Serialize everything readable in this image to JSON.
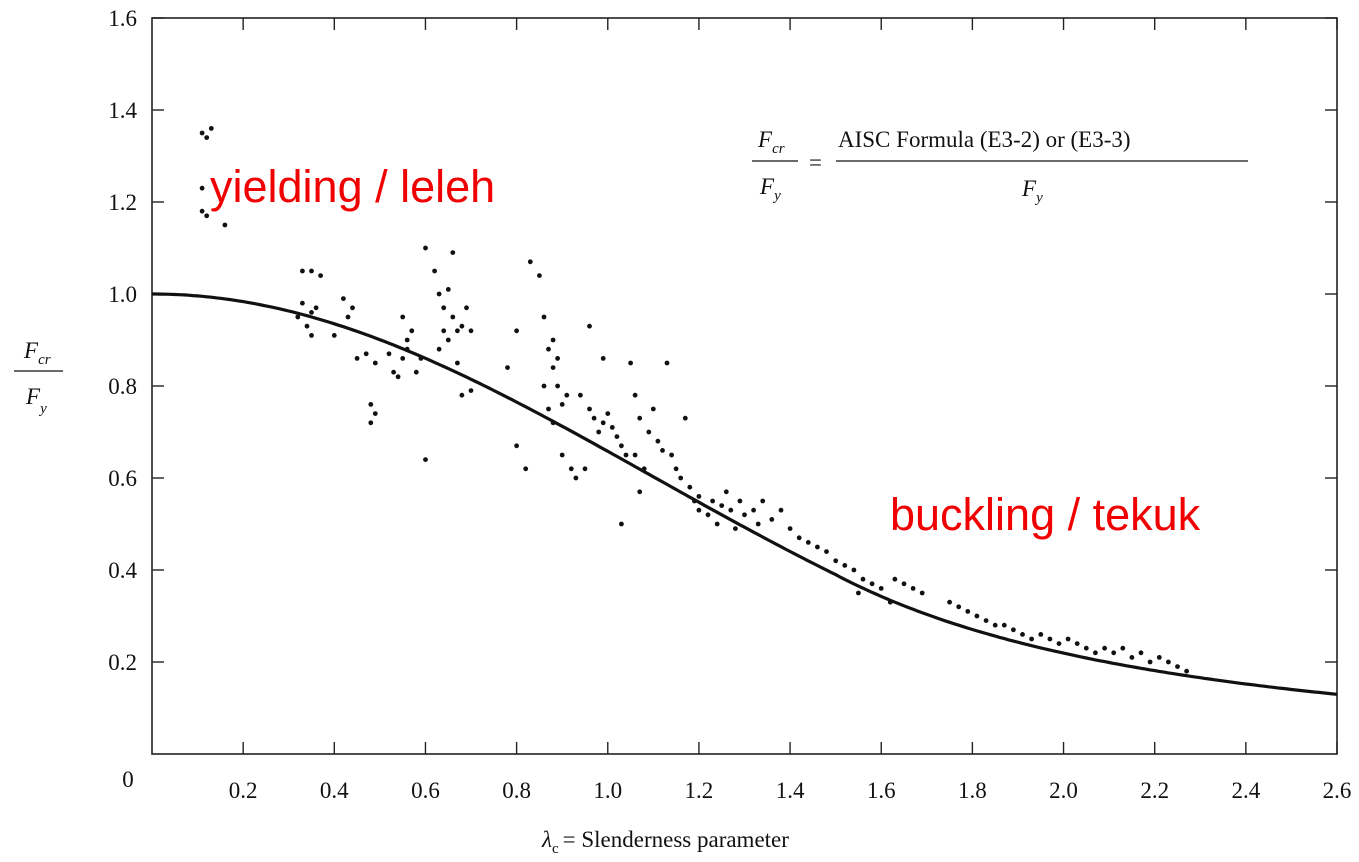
{
  "chart_data": {
    "type": "scatter",
    "xlabel_symbol": "λ",
    "xlabel_subscript": "c",
    "xlabel_text": "= Slenderness parameter",
    "ylabel_top": "F",
    "ylabel_top_sub": "cr",
    "ylabel_bottom": "F",
    "ylabel_bottom_sub": "y",
    "xlim": [
      0,
      2.6
    ],
    "ylim": [
      0,
      1.6
    ],
    "origin_label": "0",
    "x_ticks": [
      "0.2",
      "0.4",
      "0.6",
      "0.8",
      "1.0",
      "1.2",
      "1.4",
      "1.6",
      "1.8",
      "2.0",
      "2.2",
      "2.4",
      "2.6"
    ],
    "y_ticks": [
      "0.2",
      "0.4",
      "0.6",
      "0.8",
      "1.0",
      "1.2",
      "1.4",
      "1.6"
    ],
    "formula": {
      "lhs_num": "F",
      "lhs_num_sub": "cr",
      "lhs_den": "F",
      "lhs_den_sub": "y",
      "equals": "=",
      "rhs_num": "AISC Formula (E3-2) or (E3-3)",
      "rhs_den": "F",
      "rhs_den_sub": "y"
    },
    "annotations": [
      "yielding / leleh",
      "buckling / tekuk"
    ],
    "annotation_color": "#f00000",
    "curve": "AISC column strength curve: 0.658^(λc²) for λc ≤ 1.5, 0.877/λc² for λc > 1.5",
    "series": [
      {
        "points": [
          [
            0.11,
            1.35
          ],
          [
            0.12,
            1.34
          ],
          [
            0.13,
            1.36
          ],
          [
            0.11,
            1.18
          ],
          [
            0.12,
            1.17
          ],
          [
            0.16,
            1.15
          ],
          [
            0.11,
            1.23
          ],
          [
            0.33,
            1.05
          ],
          [
            0.35,
            1.05
          ],
          [
            0.37,
            1.04
          ],
          [
            0.33,
            0.98
          ],
          [
            0.35,
            0.96
          ],
          [
            0.34,
            0.93
          ],
          [
            0.35,
            0.91
          ],
          [
            0.36,
            0.97
          ],
          [
            0.32,
            0.95
          ],
          [
            0.42,
            0.99
          ],
          [
            0.44,
            0.97
          ],
          [
            0.43,
            0.95
          ],
          [
            0.4,
            0.91
          ],
          [
            0.45,
            0.86
          ],
          [
            0.47,
            0.87
          ],
          [
            0.49,
            0.85
          ],
          [
            0.48,
            0.76
          ],
          [
            0.49,
            0.74
          ],
          [
            0.48,
            0.72
          ],
          [
            0.52,
            0.87
          ],
          [
            0.53,
            0.83
          ],
          [
            0.54,
            0.82
          ],
          [
            0.55,
            0.86
          ],
          [
            0.56,
            0.88
          ],
          [
            0.57,
            0.92
          ],
          [
            0.55,
            0.95
          ],
          [
            0.56,
            0.9
          ],
          [
            0.58,
            0.83
          ],
          [
            0.59,
            0.86
          ],
          [
            0.6,
            0.64
          ],
          [
            0.62,
            1.05
          ],
          [
            0.63,
            1.0
          ],
          [
            0.64,
            0.97
          ],
          [
            0.65,
            1.01
          ],
          [
            0.66,
            0.95
          ],
          [
            0.67,
            0.92
          ],
          [
            0.66,
            1.09
          ],
          [
            0.6,
            1.1
          ],
          [
            0.63,
            0.88
          ],
          [
            0.65,
            0.9
          ],
          [
            0.68,
            0.93
          ],
          [
            0.69,
            0.97
          ],
          [
            0.7,
            0.92
          ],
          [
            0.67,
            0.85
          ],
          [
            0.68,
            0.78
          ],
          [
            0.7,
            0.79
          ],
          [
            0.64,
            0.92
          ],
          [
            0.78,
            0.84
          ],
          [
            0.8,
            0.92
          ],
          [
            0.83,
            1.07
          ],
          [
            0.85,
            1.04
          ],
          [
            0.86,
            0.95
          ],
          [
            0.87,
            0.88
          ],
          [
            0.88,
            0.84
          ],
          [
            0.89,
            0.8
          ],
          [
            0.9,
            0.76
          ],
          [
            0.91,
            0.78
          ],
          [
            0.89,
            0.86
          ],
          [
            0.88,
            0.9
          ],
          [
            0.86,
            0.8
          ],
          [
            0.87,
            0.75
          ],
          [
            0.88,
            0.72
          ],
          [
            0.8,
            0.67
          ],
          [
            0.82,
            0.62
          ],
          [
            0.9,
            0.65
          ],
          [
            0.92,
            0.62
          ],
          [
            0.93,
            0.6
          ],
          [
            0.95,
            0.62
          ],
          [
            0.94,
            0.78
          ],
          [
            0.96,
            0.75
          ],
          [
            0.97,
            0.73
          ],
          [
            0.98,
            0.7
          ],
          [
            0.99,
            0.72
          ],
          [
            1.0,
            0.74
          ],
          [
            0.96,
            0.93
          ],
          [
            0.99,
            0.86
          ],
          [
            1.01,
            0.71
          ],
          [
            1.02,
            0.69
          ],
          [
            1.03,
            0.67
          ],
          [
            1.04,
            0.65
          ],
          [
            1.05,
            0.85
          ],
          [
            1.06,
            0.78
          ],
          [
            1.07,
            0.73
          ],
          [
            1.06,
            0.65
          ],
          [
            1.08,
            0.62
          ],
          [
            1.09,
            0.7
          ],
          [
            1.1,
            0.75
          ],
          [
            1.11,
            0.68
          ],
          [
            1.12,
            0.66
          ],
          [
            1.13,
            0.85
          ],
          [
            1.14,
            0.65
          ],
          [
            1.15,
            0.62
          ],
          [
            1.16,
            0.6
          ],
          [
            1.17,
            0.73
          ],
          [
            1.18,
            0.58
          ],
          [
            1.2,
            0.56
          ],
          [
            1.03,
            0.5
          ],
          [
            1.07,
            0.57
          ],
          [
            1.19,
            0.55
          ],
          [
            1.2,
            0.53
          ],
          [
            1.22,
            0.52
          ],
          [
            1.23,
            0.55
          ],
          [
            1.24,
            0.5
          ],
          [
            1.25,
            0.54
          ],
          [
            1.27,
            0.53
          ],
          [
            1.28,
            0.49
          ],
          [
            1.26,
            0.57
          ],
          [
            1.29,
            0.55
          ],
          [
            1.3,
            0.52
          ],
          [
            1.32,
            0.53
          ],
          [
            1.33,
            0.5
          ],
          [
            1.34,
            0.55
          ],
          [
            1.36,
            0.51
          ],
          [
            1.38,
            0.53
          ],
          [
            1.4,
            0.49
          ],
          [
            1.42,
            0.47
          ],
          [
            1.44,
            0.46
          ],
          [
            1.46,
            0.45
          ],
          [
            1.48,
            0.44
          ],
          [
            1.5,
            0.42
          ],
          [
            1.52,
            0.41
          ],
          [
            1.54,
            0.4
          ],
          [
            1.56,
            0.38
          ],
          [
            1.58,
            0.37
          ],
          [
            1.55,
            0.35
          ],
          [
            1.6,
            0.36
          ],
          [
            1.62,
            0.33
          ],
          [
            1.63,
            0.38
          ],
          [
            1.65,
            0.37
          ],
          [
            1.67,
            0.36
          ],
          [
            1.69,
            0.35
          ],
          [
            1.75,
            0.33
          ],
          [
            1.77,
            0.32
          ],
          [
            1.79,
            0.31
          ],
          [
            1.81,
            0.3
          ],
          [
            1.83,
            0.29
          ],
          [
            1.85,
            0.28
          ],
          [
            1.87,
            0.28
          ],
          [
            1.89,
            0.27
          ],
          [
            1.91,
            0.26
          ],
          [
            1.93,
            0.25
          ],
          [
            1.95,
            0.26
          ],
          [
            1.97,
            0.25
          ],
          [
            1.99,
            0.24
          ],
          [
            2.01,
            0.25
          ],
          [
            2.03,
            0.24
          ],
          [
            2.05,
            0.23
          ],
          [
            2.07,
            0.22
          ],
          [
            2.09,
            0.23
          ],
          [
            2.11,
            0.22
          ],
          [
            2.13,
            0.23
          ],
          [
            2.15,
            0.21
          ],
          [
            2.17,
            0.22
          ],
          [
            2.19,
            0.2
          ],
          [
            2.21,
            0.21
          ],
          [
            2.23,
            0.2
          ],
          [
            2.25,
            0.19
          ],
          [
            2.27,
            0.18
          ]
        ]
      }
    ]
  }
}
